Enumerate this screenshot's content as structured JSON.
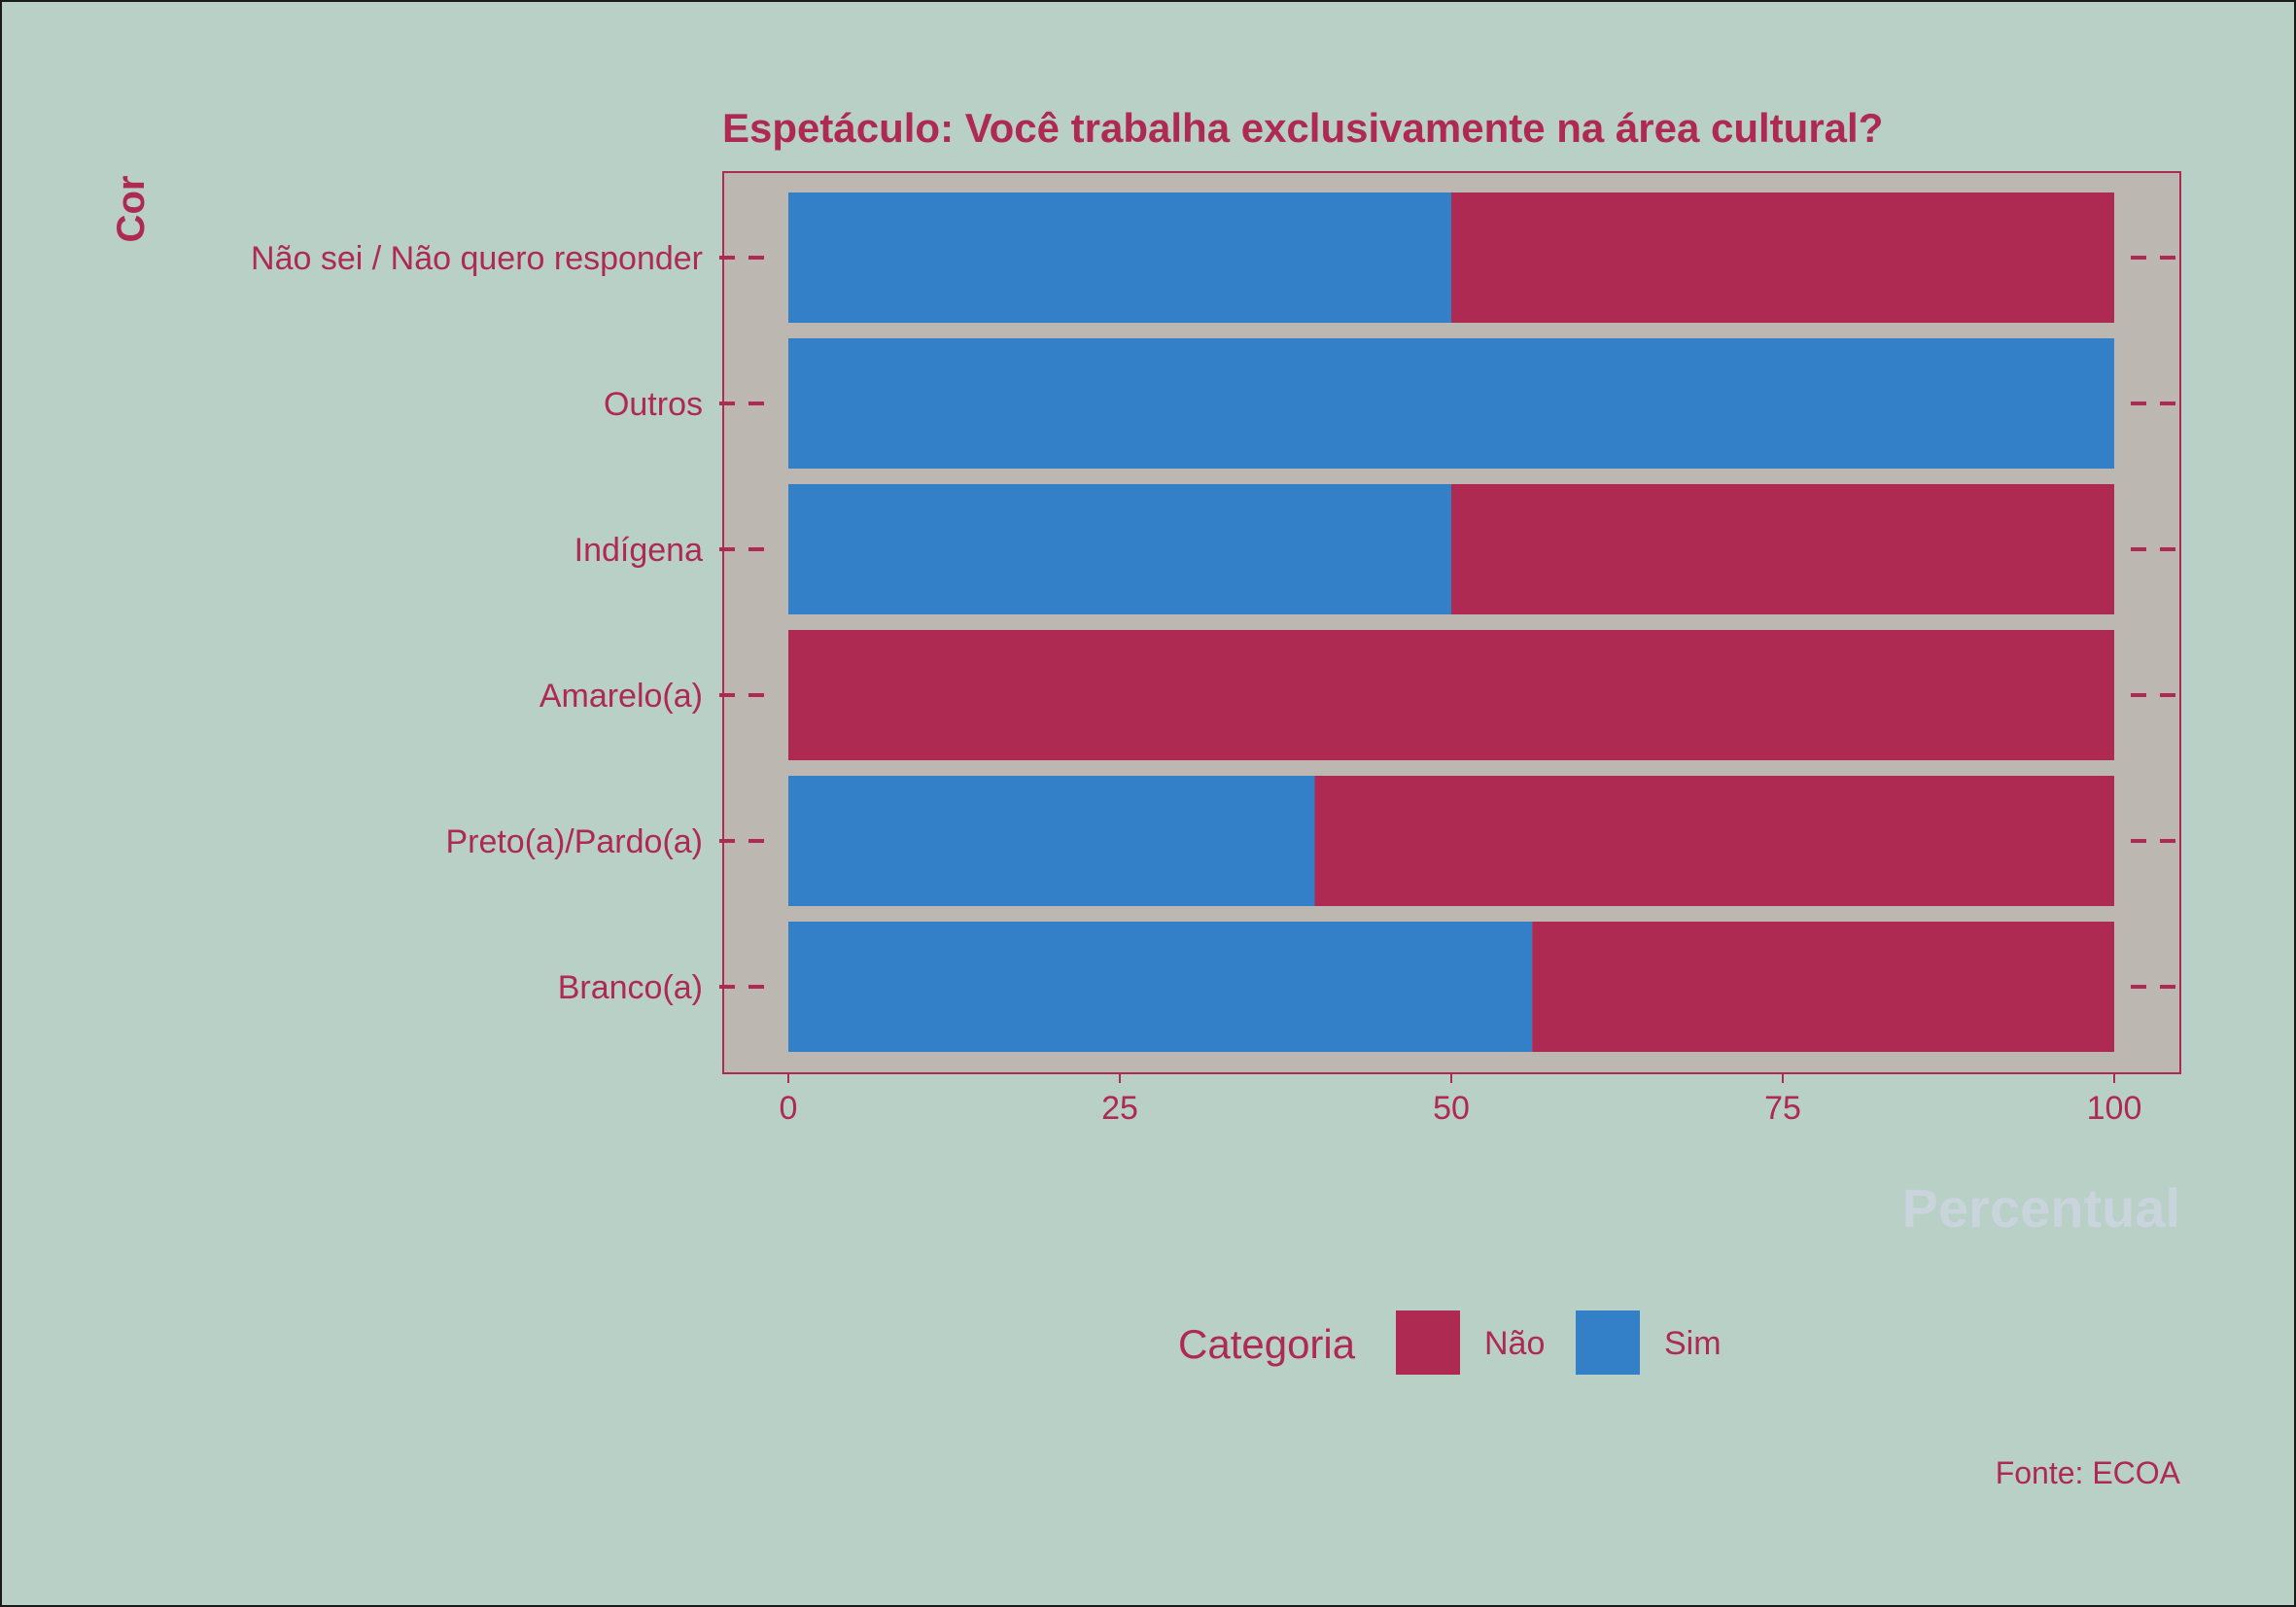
{
  "chart_data": {
    "type": "bar",
    "orientation": "horizontal",
    "stacked": true,
    "title": "Espetáculo: Você trabalha exclusivamente na área cultural?",
    "ylabel": "Cor",
    "xlabel": "Percentual",
    "categories": [
      "Não sei / Não quero responder",
      "Outros",
      "Indígena",
      "Amarelo(a)",
      "Preto(a)/Pardo(a)",
      "Branco(a)"
    ],
    "series": [
      {
        "name": "Sim",
        "color": "#3380c9",
        "values": [
          50,
          100,
          50,
          0,
          39.7,
          56.1
        ]
      },
      {
        "name": "Não",
        "color": "#ae2a53",
        "values": [
          50,
          0,
          50,
          100,
          60.3,
          43.9
        ]
      }
    ],
    "xlim": [
      0,
      100
    ],
    "xticks": [
      "0",
      "25",
      "50",
      "75",
      "100"
    ],
    "grid": false,
    "legend": {
      "title": "Categoria",
      "position": "bottom",
      "entries": [
        {
          "name": "Não",
          "color": "#ae2a53"
        },
        {
          "name": "Sim",
          "color": "#3380c9"
        }
      ]
    },
    "caption": "Fonte: ECOA",
    "colors": {
      "background": "#b8d0c6",
      "panel": "#bdb7b1",
      "text_accent": "#ae2a53",
      "xlabel_color": "#c9d4dc"
    }
  }
}
